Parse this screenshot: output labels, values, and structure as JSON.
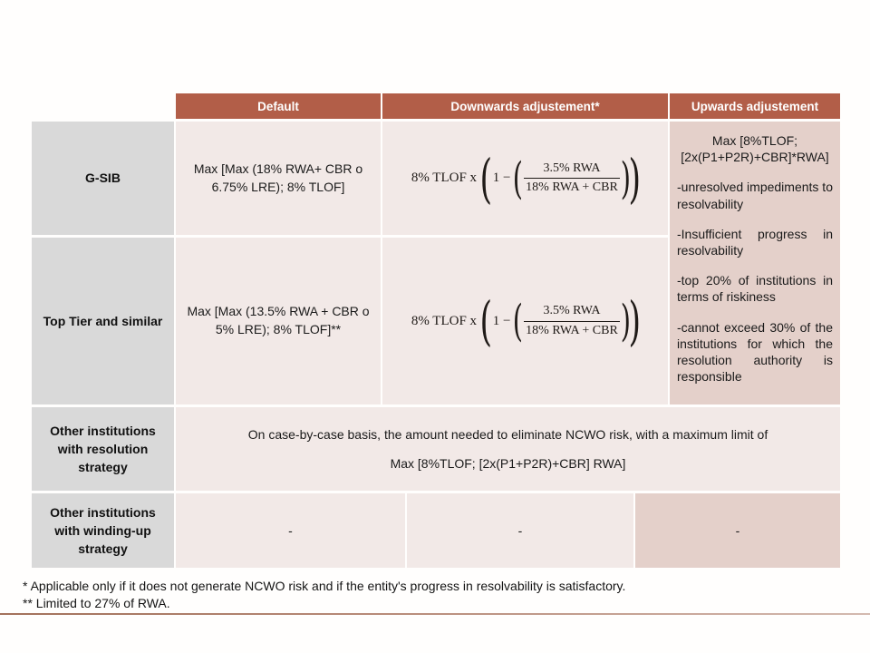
{
  "colors": {
    "header_bg": "#b25e48",
    "row_header_bg": "#d9d9d9",
    "cell_bg": "#f2e9e7",
    "upwards_cell_bg": "#e4d0ca",
    "accent_line": "#a3725c"
  },
  "table": {
    "col_headers": [
      "Default",
      "Downwards adjustement*",
      "Upwards adjustement"
    ],
    "row_headers": [
      "G-SIB",
      "Top Tier and similar",
      "Other institutions with resolution strategy",
      "Other institutions with winding-up strategy"
    ],
    "gsib_default": "Max [Max (18% RWA+ CBR o 6.75% LRE); 8% TLOF]",
    "toptier_default": "Max [Max (13.5% RWA + CBR o 5% LRE); 8% TLOF]**",
    "upwards": {
      "max_clause": "Max [8%TLOF; [2x(P1+P2R)+CBR]*RWA]",
      "bullets": [
        "-unresolved impediments to resolvability",
        "-Insufficient progress in resolvability",
        "-top 20% of institutions in terms of riskiness",
        "-cannot exceed 30% of the institutions for which the resolution authority is responsible"
      ]
    },
    "resolution_row": {
      "line1": "On case-by-case basis, the amount needed to eliminate NCWO risk, with a maximum limit of",
      "line2": "Max [8%TLOF; [2x(P1+P2R)+CBR] RWA]"
    },
    "winding_row": {
      "cells": [
        "-",
        "-",
        "-"
      ]
    }
  },
  "formula": {
    "prefix": "8% TLOF x",
    "open_paren": "(",
    "close_paren": ")",
    "one_minus": "1 −",
    "numerator": "3.5% RWA",
    "denominator": "18% RWA + CBR"
  },
  "footnotes": [
    "* Applicable only if it does not generate NCWO risk and if the entity's progress in resolvability is satisfactory.",
    "** Limited to 27% of RWA."
  ]
}
